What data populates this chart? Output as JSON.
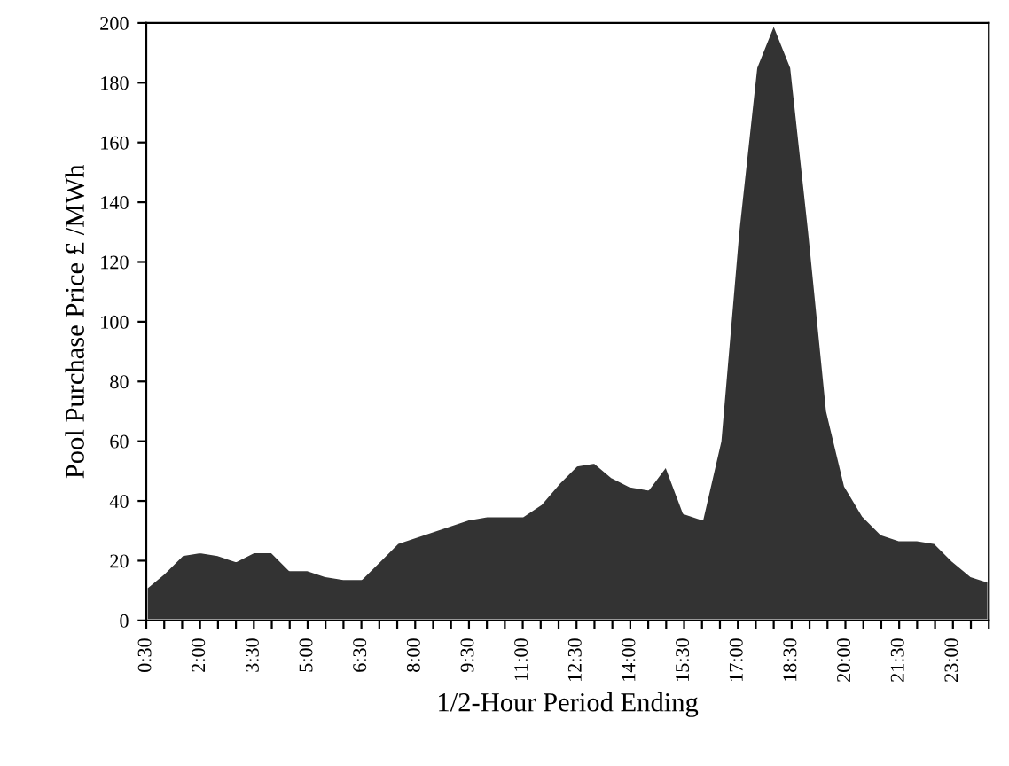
{
  "chart_data": {
    "type": "area",
    "xlabel": "1/2-Hour Period Ending",
    "ylabel": "Pool Purchase Price £ /MWh",
    "categories": [
      "0:30",
      null,
      null,
      "2:00",
      null,
      null,
      "3:30",
      null,
      null,
      "5:00",
      null,
      null,
      "6:30",
      null,
      null,
      "8:00",
      null,
      null,
      "9:30",
      null,
      null,
      "11:00",
      null,
      null,
      "12:30",
      null,
      null,
      "14:00",
      null,
      null,
      "15:30",
      null,
      null,
      "17:00",
      null,
      null,
      "18:30",
      null,
      null,
      "20:00",
      null,
      null,
      "21:30",
      null,
      null,
      "23:00",
      null,
      null
    ],
    "series": [
      {
        "color": "#333333",
        "values": [
          11,
          16,
          22,
          23,
          22,
          20,
          23,
          23,
          17,
          17,
          15,
          14,
          14,
          20,
          26,
          28,
          30,
          32,
          34,
          35,
          35,
          35,
          39,
          46,
          52,
          53,
          48,
          45,
          44,
          52,
          36,
          34,
          60,
          130,
          185,
          200,
          185,
          130,
          70,
          45,
          35,
          29,
          27,
          27,
          26,
          20,
          15,
          13
        ]
      }
    ],
    "ylim": [
      0,
      200
    ],
    "yticks": [
      0,
      20,
      40,
      60,
      80,
      100,
      120,
      140,
      160,
      180,
      200
    ],
    "grid": false,
    "legend": false
  }
}
